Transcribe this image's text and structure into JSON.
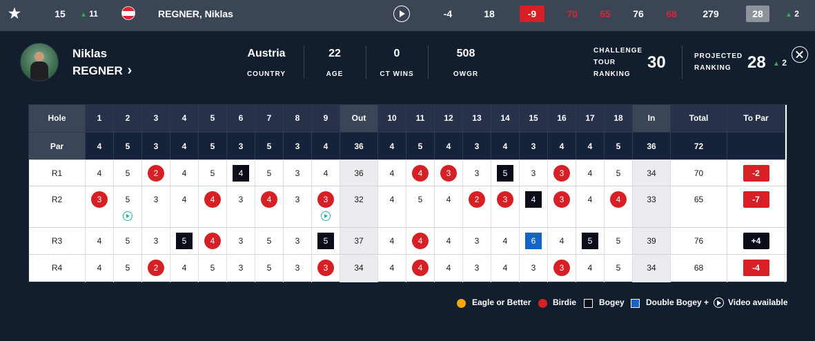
{
  "summary_row": {
    "position": "15",
    "movement": "11",
    "player_name": "REGNER, Niklas",
    "score_to_par": "-9",
    "thru": "18",
    "par_to_date": "-4",
    "rounds": [
      "70",
      "65",
      "76",
      "68"
    ],
    "total": "279",
    "projected": "28",
    "projected_move": "2",
    "icons": {
      "favourite": "star-icon",
      "flag": "austria-flag-icon",
      "play": "play-icon"
    }
  },
  "player": {
    "first_name": "Niklas",
    "last_name": "REGNER",
    "chevron": "›",
    "stats": [
      {
        "value": "Austria",
        "label": "COUNTRY"
      },
      {
        "value": "22",
        "label": "AGE"
      },
      {
        "value": "0",
        "label": "CT WINS"
      },
      {
        "value": "508",
        "label": "OWGR"
      }
    ],
    "challenge_tour_ranking_label": [
      "CHALLENGE",
      "TOUR",
      "RANKING"
    ],
    "challenge_tour_ranking": "30",
    "projected_ranking_label": [
      "PROJECTED",
      "RANKING"
    ],
    "projected_ranking": "28",
    "projected_ranking_move": "2"
  },
  "scorecard": {
    "holes_row": [
      "Hole",
      "1",
      "2",
      "3",
      "4",
      "5",
      "6",
      "7",
      "8",
      "9",
      "Out",
      "10",
      "11",
      "12",
      "13",
      "14",
      "15",
      "16",
      "17",
      "18",
      "In",
      "Total",
      "To Par"
    ],
    "par_row": [
      "Par",
      "4",
      "5",
      "3",
      "4",
      "5",
      "3",
      "5",
      "3",
      "4",
      "36",
      "4",
      "5",
      "4",
      "3",
      "4",
      "3",
      "4",
      "4",
      "5",
      "36",
      "72",
      ""
    ],
    "rounds": [
      {
        "label": "R1",
        "cells": [
          [
            "4",
            ""
          ],
          [
            "5",
            ""
          ],
          [
            "2",
            "birdie"
          ],
          [
            "4",
            ""
          ],
          [
            "5",
            ""
          ],
          [
            "4",
            "bogey"
          ],
          [
            "5",
            ""
          ],
          [
            "3",
            ""
          ],
          [
            "4",
            ""
          ],
          [
            "36",
            "sum"
          ],
          [
            "4",
            ""
          ],
          [
            "4",
            "birdie"
          ],
          [
            "3",
            "birdie"
          ],
          [
            "3",
            ""
          ],
          [
            "5",
            "bogey"
          ],
          [
            "3",
            ""
          ],
          [
            "3",
            "birdie"
          ],
          [
            "4",
            ""
          ],
          [
            "5",
            ""
          ],
          [
            "34",
            "sum"
          ],
          [
            "70",
            ""
          ],
          [
            "-2",
            "topar"
          ]
        ]
      },
      {
        "label": "R2",
        "cells": [
          [
            "3",
            "birdie"
          ],
          [
            "5",
            "video"
          ],
          [
            "3",
            ""
          ],
          [
            "4",
            ""
          ],
          [
            "4",
            "birdie"
          ],
          [
            "3",
            ""
          ],
          [
            "4",
            "birdie"
          ],
          [
            "3",
            ""
          ],
          [
            "3",
            "birdie-video"
          ],
          [
            "32",
            "sum"
          ],
          [
            "4",
            ""
          ],
          [
            "5",
            ""
          ],
          [
            "4",
            ""
          ],
          [
            "2",
            "birdie"
          ],
          [
            "3",
            "birdie"
          ],
          [
            "4",
            "bogey"
          ],
          [
            "3",
            "birdie"
          ],
          [
            "4",
            ""
          ],
          [
            "4",
            "birdie"
          ],
          [
            "33",
            "sum"
          ],
          [
            "65",
            ""
          ],
          [
            "-7",
            "topar"
          ]
        ]
      },
      {
        "label": "R3",
        "cells": [
          [
            "4",
            ""
          ],
          [
            "5",
            ""
          ],
          [
            "3",
            ""
          ],
          [
            "5",
            "bogey"
          ],
          [
            "4",
            "birdie"
          ],
          [
            "3",
            ""
          ],
          [
            "5",
            ""
          ],
          [
            "3",
            ""
          ],
          [
            "5",
            "bogey"
          ],
          [
            "37",
            "sum"
          ],
          [
            "4",
            ""
          ],
          [
            "4",
            "birdie"
          ],
          [
            "4",
            ""
          ],
          [
            "3",
            ""
          ],
          [
            "4",
            ""
          ],
          [
            "6",
            "dbogey"
          ],
          [
            "4",
            ""
          ],
          [
            "5",
            "bogey"
          ],
          [
            "5",
            ""
          ],
          [
            "39",
            "sum"
          ],
          [
            "76",
            ""
          ],
          [
            "+4",
            "topar-over"
          ]
        ]
      },
      {
        "label": "R4",
        "cells": [
          [
            "4",
            ""
          ],
          [
            "5",
            ""
          ],
          [
            "2",
            "birdie"
          ],
          [
            "4",
            ""
          ],
          [
            "5",
            ""
          ],
          [
            "3",
            ""
          ],
          [
            "5",
            ""
          ],
          [
            "3",
            ""
          ],
          [
            "3",
            "birdie"
          ],
          [
            "34",
            "sum"
          ],
          [
            "4",
            ""
          ],
          [
            "4",
            "birdie"
          ],
          [
            "4",
            ""
          ],
          [
            "3",
            ""
          ],
          [
            "4",
            ""
          ],
          [
            "3",
            ""
          ],
          [
            "3",
            "birdie"
          ],
          [
            "4",
            ""
          ],
          [
            "5",
            ""
          ],
          [
            "34",
            "sum"
          ],
          [
            "68",
            ""
          ],
          [
            "-4",
            "topar"
          ]
        ]
      }
    ]
  },
  "legend": {
    "eagle": "Eagle or Better",
    "birdie": "Birdie",
    "bogey": "Bogey",
    "double_bogey": "Double Bogey +",
    "video": "Video available"
  },
  "colors": {
    "birdie": "#d71f26",
    "eagle": "#f5a800",
    "bogey": "#0b0e1a",
    "double_bogey": "#1464c8",
    "video": "#2cb3a6",
    "up": "#2bb24c"
  }
}
